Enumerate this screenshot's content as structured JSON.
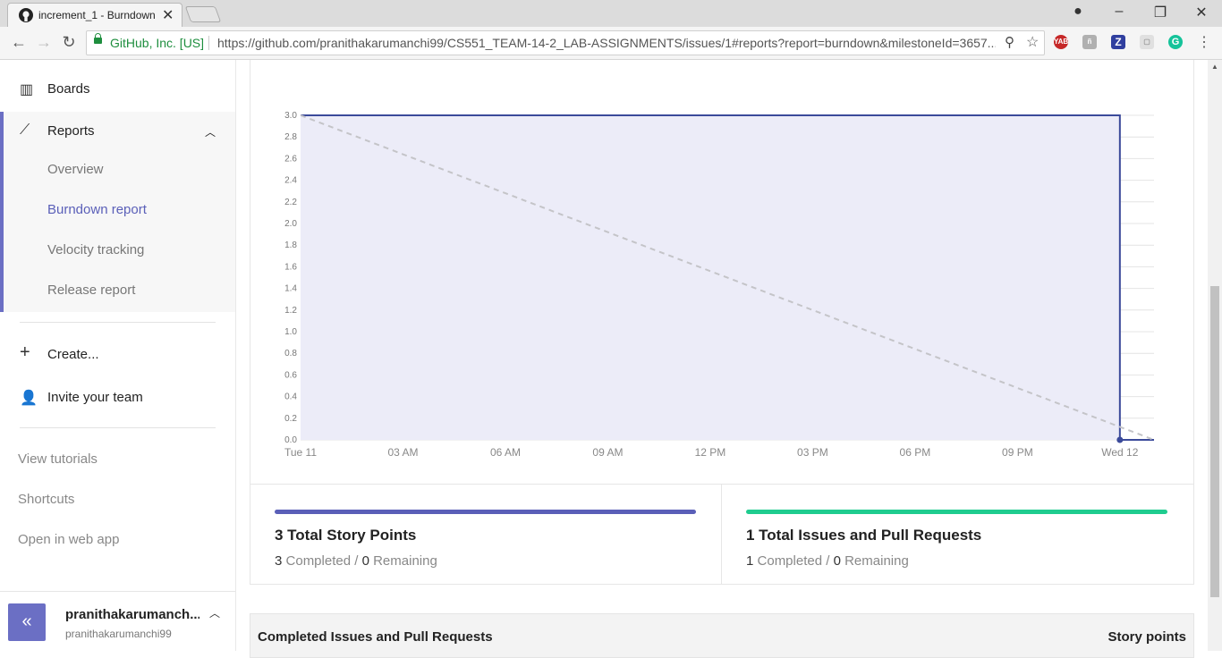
{
  "browser": {
    "tab_title": "increment_1 - Burndown",
    "secure_label": "GitHub, Inc. [US]",
    "url": "https://github.com/pranithakarumanchi99/CS551_TEAM-14-2_LAB-ASSIGNMENTS/issues/1#reports?report=burndown&milestoneId=3657...",
    "extension_label": "YAB"
  },
  "sidebar": {
    "boards": "Boards",
    "reports": "Reports",
    "report_items": [
      "Overview",
      "Burndown report",
      "Velocity tracking",
      "Release report"
    ],
    "create": "Create...",
    "invite": "Invite your team",
    "links": [
      "View tutorials",
      "Shortcuts",
      "Open in web app"
    ],
    "user": {
      "name": "pranithakarumanch...",
      "handle": "pranithakarumanchi99",
      "collapse": "«"
    }
  },
  "stats": {
    "story": {
      "title": "3 Total Story Points",
      "completed": "3",
      "completed_label": "Completed",
      "slash": "/",
      "remaining": "0",
      "remaining_label": "Remaining",
      "color": "#5a5fb8"
    },
    "issues": {
      "title": "1 Total Issues and Pull Requests",
      "completed": "1",
      "completed_label": "Completed",
      "slash": "/",
      "remaining": "0",
      "remaining_label": "Remaining",
      "color": "#1fcc8f"
    }
  },
  "table": {
    "col1": "Completed Issues and Pull Requests",
    "col2": "Story points"
  },
  "chart_data": {
    "type": "line",
    "x_ticks": [
      "Tue 11",
      "03 AM",
      "06 AM",
      "09 AM",
      "12 PM",
      "03 PM",
      "06 PM",
      "09 PM",
      "Wed 12"
    ],
    "y_ticks": [
      "0.0",
      "0.2",
      "0.4",
      "0.6",
      "0.8",
      "1.0",
      "1.2",
      "1.4",
      "1.6",
      "1.8",
      "2.0",
      "2.2",
      "2.4",
      "2.6",
      "2.8",
      "3.0"
    ],
    "ylim": [
      0,
      3
    ],
    "xlim_hours": [
      0,
      25
    ],
    "series": [
      {
        "style": "solid",
        "color": "#3b4a9a",
        "fill": "#ececf8",
        "x": [
          0,
          24,
          24,
          25
        ],
        "y": [
          3.0,
          3.0,
          0.0,
          0.0
        ]
      },
      {
        "style": "dashed",
        "color": "#c4c4c8",
        "x": [
          0,
          25
        ],
        "y": [
          3.0,
          0.0
        ]
      }
    ]
  }
}
